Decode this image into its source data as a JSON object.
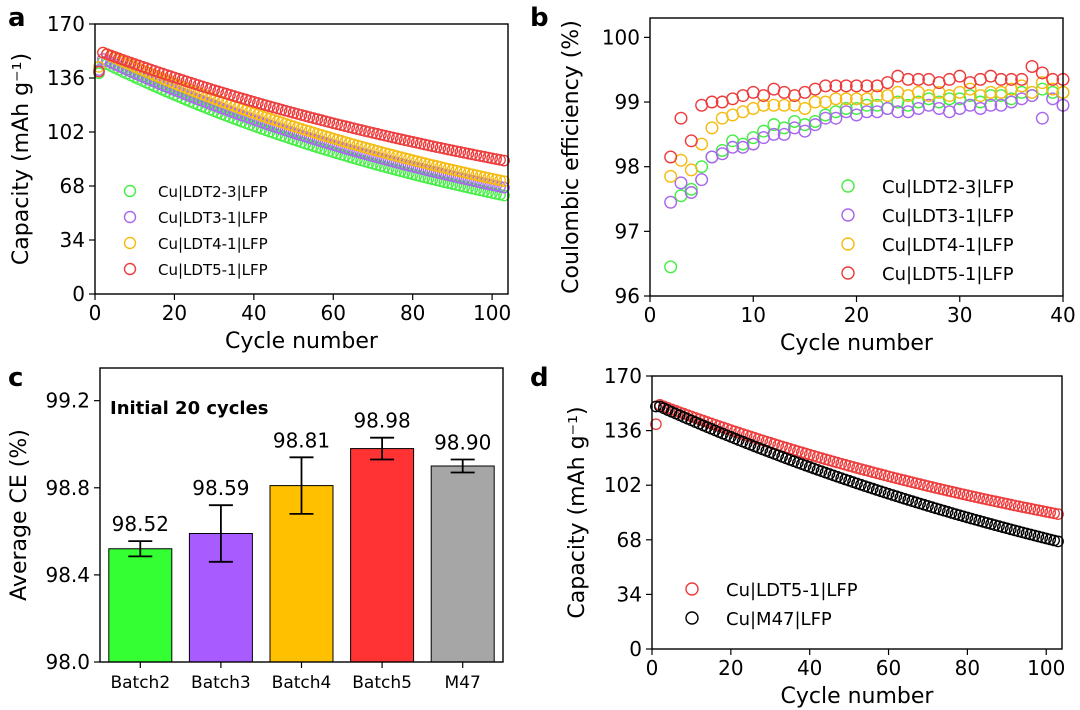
{
  "colors": {
    "green": "#33ff33",
    "purple": "#a85cff",
    "orange": "#ffc000",
    "red": "#ff3333",
    "gray": "#a6a6a6",
    "black": "#000000",
    "green_line": "#44ee44",
    "purple_line": "#a866ee",
    "orange_line": "#f5bb10",
    "red_line": "#ee3b3b"
  },
  "panels": {
    "a": "a",
    "b": "b",
    "c": "c",
    "d": "d"
  },
  "chart_data": [
    {
      "id": "a",
      "type": "scatter",
      "xlabel": "Cycle number",
      "ylabel": "Capacity (mAh g⁻¹)",
      "xlim": [
        0,
        104
      ],
      "ylim": [
        0,
        170
      ],
      "xticks": [
        0,
        20,
        40,
        60,
        80,
        100
      ],
      "yticks": [
        0,
        34,
        68,
        102,
        136,
        170
      ],
      "series": [
        {
          "name": "Cu|LDT2-3|LFP",
          "color": "green_line",
          "first": 139,
          "start": 146,
          "end": 62,
          "k": 0.0085
        },
        {
          "name": "Cu|LDT3-1|LFP",
          "color": "purple_line",
          "first": 141,
          "start": 148,
          "end": 67,
          "k": 0.008
        },
        {
          "name": "Cu|LDT4-1|LFP",
          "color": "orange_line",
          "first": 143,
          "start": 152,
          "end": 71,
          "k": 0.0078
        },
        {
          "name": "Cu|LDT5-1|LFP",
          "color": "red_line",
          "first": 140,
          "start": 152,
          "end": 84,
          "k": 0.0066
        }
      ]
    },
    {
      "id": "b",
      "type": "scatter",
      "xlabel": "Cycle number",
      "ylabel": "Coulombic efficiency (%)",
      "xlim": [
        0,
        40
      ],
      "ylim": [
        96,
        100.3
      ],
      "xticks": [
        0,
        10,
        20,
        30,
        40
      ],
      "yticks": [
        96,
        97,
        98,
        99,
        100
      ],
      "x": [
        2,
        3,
        4,
        5,
        6,
        7,
        8,
        9,
        10,
        11,
        12,
        13,
        14,
        15,
        16,
        17,
        18,
        19,
        20,
        21,
        22,
        23,
        24,
        25,
        26,
        27,
        28,
        29,
        30,
        31,
        32,
        33,
        34,
        35,
        36,
        37,
        38,
        39,
        40
      ],
      "series": [
        {
          "name": "Cu|LDT2-3|LFP",
          "color": "green_line",
          "values": [
            96.45,
            97.55,
            97.65,
            98.0,
            98.15,
            98.25,
            98.4,
            98.35,
            98.45,
            98.55,
            98.65,
            98.6,
            98.7,
            98.65,
            98.7,
            98.8,
            98.85,
            98.9,
            98.9,
            98.95,
            98.95,
            98.9,
            99.0,
            98.95,
            99.0,
            99.05,
            99.0,
            99.05,
            99.05,
            99.1,
            99.0,
            99.1,
            99.1,
            99.05,
            99.15,
            99.1,
            99.2,
            99.15,
            99.15
          ]
        },
        {
          "name": "Cu|LDT3-1|LFP",
          "color": "purple_line",
          "values": [
            97.45,
            97.75,
            97.6,
            97.8,
            98.15,
            98.2,
            98.3,
            98.3,
            98.35,
            98.45,
            98.5,
            98.5,
            98.6,
            98.55,
            98.65,
            98.75,
            98.75,
            98.85,
            98.8,
            98.85,
            98.85,
            98.9,
            98.85,
            98.85,
            98.9,
            98.95,
            98.9,
            98.85,
            98.9,
            98.95,
            98.9,
            98.95,
            98.95,
            99.0,
            99.05,
            99.1,
            98.75,
            99.05,
            98.95
          ]
        },
        {
          "name": "Cu|LDT4-1|LFP",
          "color": "orange_line",
          "values": [
            97.85,
            98.1,
            97.95,
            98.35,
            98.6,
            98.75,
            98.8,
            98.85,
            98.9,
            98.95,
            98.95,
            98.95,
            98.95,
            98.9,
            99.0,
            99.0,
            99.05,
            99.05,
            99.05,
            99.05,
            99.1,
            99.1,
            99.15,
            99.1,
            99.15,
            99.1,
            99.15,
            99.1,
            99.15,
            99.2,
            99.1,
            99.15,
            99.15,
            99.2,
            99.25,
            99.15,
            99.3,
            99.2,
            99.15
          ]
        },
        {
          "name": "Cu|LDT5-1|LFP",
          "color": "red_line",
          "values": [
            98.15,
            98.75,
            98.4,
            98.95,
            99.0,
            99.0,
            99.05,
            99.1,
            99.15,
            99.1,
            99.2,
            99.15,
            99.1,
            99.15,
            99.2,
            99.25,
            99.25,
            99.25,
            99.25,
            99.25,
            99.25,
            99.3,
            99.4,
            99.35,
            99.35,
            99.35,
            99.3,
            99.35,
            99.4,
            99.3,
            99.35,
            99.4,
            99.35,
            99.35,
            99.35,
            99.55,
            99.45,
            99.35,
            99.35
          ]
        }
      ]
    },
    {
      "id": "c",
      "type": "bar",
      "title": "Initial 20 cycles",
      "xlabel": "",
      "ylabel": "Average CE (%)",
      "ylim": [
        98.0,
        99.35
      ],
      "yticks": [
        98.0,
        98.4,
        98.8,
        99.2
      ],
      "ytick_labels": [
        "98.0",
        "98.4",
        "98.8",
        "99.2"
      ],
      "categories": [
        "Batch2",
        "Batch3",
        "Batch4",
        "Batch5",
        "M47"
      ],
      "values": [
        98.52,
        98.59,
        98.81,
        98.98,
        98.9
      ],
      "value_labels": [
        "98.52",
        "98.59",
        "98.81",
        "98.98",
        "98.90"
      ],
      "errors": [
        0.035,
        0.13,
        0.13,
        0.05,
        0.03
      ],
      "bar_colors": [
        "green",
        "purple",
        "orange",
        "red",
        "gray"
      ]
    },
    {
      "id": "d",
      "type": "scatter",
      "xlabel": "Cycle number",
      "ylabel": "Capacity (mAh g⁻¹)",
      "xlim": [
        0,
        104
      ],
      "ylim": [
        0,
        170
      ],
      "xticks": [
        0,
        20,
        40,
        60,
        80,
        100
      ],
      "yticks": [
        0,
        34,
        68,
        102,
        136,
        170
      ],
      "series": [
        {
          "name": "Cu|LDT5-1|LFP",
          "color": "red_line",
          "first": 140,
          "start": 152,
          "end": 84,
          "k": 0.0066
        },
        {
          "name": "Cu|M47|LFP",
          "color": "black",
          "first": 151,
          "start": 151,
          "end": 67,
          "k": 0.006
        }
      ]
    }
  ]
}
